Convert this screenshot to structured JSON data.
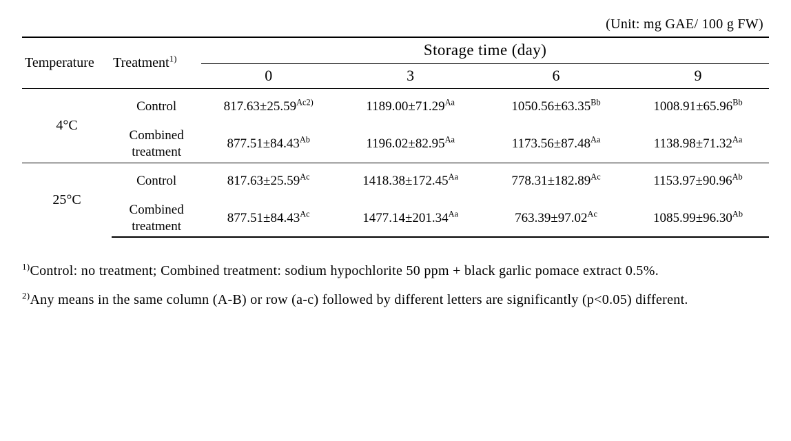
{
  "unit_text": "(Unit: mg GAE/ 100 g FW)",
  "headers": {
    "temperature": "Temperature",
    "treatment": "Treatment",
    "treatment_sup": "1)",
    "storage_time": "Storage time (day)",
    "days": [
      "0",
      "3",
      "6",
      "9"
    ]
  },
  "rows": [
    {
      "temp": "4°C",
      "treatments": [
        {
          "label": "Control",
          "values": [
            {
              "text": "817.63±25.59",
              "sup": "Ac2)"
            },
            {
              "text": "1189.00±71.29",
              "sup": "Aa"
            },
            {
              "text": "1050.56±63.35",
              "sup": "Bb"
            },
            {
              "text": "1008.91±65.96",
              "sup": "Bb"
            }
          ]
        },
        {
          "label": "Combined\ntreatment",
          "values": [
            {
              "text": "877.51±84.43",
              "sup": "Ab"
            },
            {
              "text": "1196.02±82.95",
              "sup": "Aa"
            },
            {
              "text": "1173.56±87.48",
              "sup": "Aa"
            },
            {
              "text": "1138.98±71.32",
              "sup": "Aa"
            }
          ]
        }
      ]
    },
    {
      "temp": "25°C",
      "treatments": [
        {
          "label": "Control",
          "values": [
            {
              "text": "817.63±25.59",
              "sup": "Ac"
            },
            {
              "text": "1418.38±172.45",
              "sup": "Aa"
            },
            {
              "text": "778.31±182.89",
              "sup": "Ac"
            },
            {
              "text": "1153.97±90.96",
              "sup": "Ab"
            }
          ]
        },
        {
          "label": "Combined\ntreatment",
          "values": [
            {
              "text": "877.51±84.43",
              "sup": "Ac"
            },
            {
              "text": "1477.14±201.34",
              "sup": "Aa"
            },
            {
              "text": "763.39±97.02",
              "sup": "Ac"
            },
            {
              "text": "1085.99±96.30",
              "sup": "Ab"
            }
          ]
        }
      ]
    }
  ],
  "footnotes": {
    "f1_sup": "1)",
    "f1_text": "Control: no treatment; Combined treatment: sodium hypochlorite 50 ppm + black garlic pomace extract 0.5%.",
    "f2_sup": "2)",
    "f2_text": "Any means in the same column (A-B) or row (a-c) followed by different letters are significantly (p<0.05) different."
  }
}
